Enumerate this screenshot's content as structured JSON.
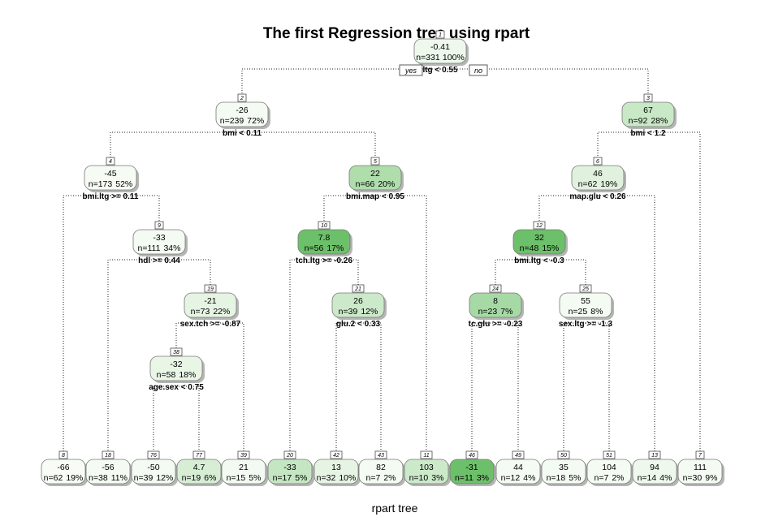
{
  "title": "The first Regression tree using rpart",
  "subtitle": "rpart tree",
  "branch_labels": {
    "yes": "yes",
    "no": "no"
  },
  "colors": {
    "lightest": "#f7fcf5",
    "darkest": "#66bd63"
  },
  "nodes": [
    {
      "id": "1",
      "value": "-0.41",
      "n": "n=331",
      "pct": "100%",
      "split": "ltg < 0.55",
      "fill": 0.06
    },
    {
      "id": "2",
      "value": "-26",
      "n": "n=239",
      "pct": "72%",
      "split": "bmi < 0.11",
      "fill": 0.02
    },
    {
      "id": "3",
      "value": "67",
      "n": "n=92",
      "pct": "28%",
      "split": "bmi < 1.2",
      "fill": 0.32
    },
    {
      "id": "4",
      "value": "-45",
      "n": "n=173",
      "pct": "52%",
      "split": "bmi.ltg >= 0.11",
      "fill": 0.01
    },
    {
      "id": "5",
      "value": "22",
      "n": "n=66",
      "pct": "20%",
      "split": "bmi.map < 0.95",
      "fill": 0.5
    },
    {
      "id": "6",
      "value": "46",
      "n": "n=62",
      "pct": "19%",
      "split": "map.glu < 0.26",
      "fill": 0.16
    },
    {
      "id": "9",
      "value": "-33",
      "n": "n=111",
      "pct": "34%",
      "split": "hdl >= 0.44",
      "fill": 0.02
    },
    {
      "id": "10",
      "value": "7.8",
      "n": "n=56",
      "pct": "17%",
      "split": "tch.ltg >= -0.26",
      "fill": 0.95
    },
    {
      "id": "12",
      "value": "32",
      "n": "n=48",
      "pct": "15%",
      "split": "bmi.ltg < -0.3",
      "fill": 0.95
    },
    {
      "id": "19",
      "value": "-21",
      "n": "n=73",
      "pct": "22%",
      "split": "sex.tch >= -0.87",
      "fill": 0.12
    },
    {
      "id": "21",
      "value": "26",
      "n": "n=39",
      "pct": "12%",
      "split": "glu.2 < 0.33",
      "fill": 0.3
    },
    {
      "id": "24",
      "value": "8",
      "n": "n=23",
      "pct": "7%",
      "split": "tc.glu >= -0.23",
      "fill": 0.55
    },
    {
      "id": "25",
      "value": "55",
      "n": "n=25",
      "pct": "8%",
      "split": "sex.ltg >= -1.3",
      "fill": 0.02
    },
    {
      "id": "38",
      "value": "-32",
      "n": "n=58",
      "pct": "18%",
      "split": "age.sex < 0.75",
      "fill": 0.1
    },
    {
      "id": "8",
      "value": "-66",
      "n": "n=62",
      "pct": "19%",
      "split": "",
      "fill": 0.0
    },
    {
      "id": "18",
      "value": "-56",
      "n": "n=38",
      "pct": "11%",
      "split": "",
      "fill": 0.02
    },
    {
      "id": "76",
      "value": "-50",
      "n": "n=39",
      "pct": "12%",
      "split": "",
      "fill": 0.02
    },
    {
      "id": "77",
      "value": "4.7",
      "n": "n=19",
      "pct": "6%",
      "split": "",
      "fill": 0.22
    },
    {
      "id": "39",
      "value": "21",
      "n": "n=15",
      "pct": "5%",
      "split": "",
      "fill": 0.03
    },
    {
      "id": "20",
      "value": "-33",
      "n": "n=17",
      "pct": "5%",
      "split": "",
      "fill": 0.35
    },
    {
      "id": "42",
      "value": "13",
      "n": "n=32",
      "pct": "10%",
      "split": "",
      "fill": 0.12
    },
    {
      "id": "43",
      "value": "82",
      "n": "n=7",
      "pct": "2%",
      "split": "",
      "fill": 0.02
    },
    {
      "id": "11",
      "value": "103",
      "n": "n=10",
      "pct": "3%",
      "split": "",
      "fill": 0.3
    },
    {
      "id": "46",
      "value": "-31",
      "n": "n=11",
      "pct": "3%",
      "split": "",
      "fill": 0.95
    },
    {
      "id": "49",
      "value": "44",
      "n": "n=12",
      "pct": "4%",
      "split": "",
      "fill": 0.02
    },
    {
      "id": "50",
      "value": "35",
      "n": "n=18",
      "pct": "5%",
      "split": "",
      "fill": 0.02
    },
    {
      "id": "51",
      "value": "104",
      "n": "n=7",
      "pct": "2%",
      "split": "",
      "fill": 0.02
    },
    {
      "id": "13",
      "value": "94",
      "n": "n=14",
      "pct": "4%",
      "split": "",
      "fill": 0.06
    },
    {
      "id": "7",
      "value": "111",
      "n": "n=30",
      "pct": "9%",
      "split": "",
      "fill": 0.02
    }
  ],
  "edges": [
    [
      "1",
      "2"
    ],
    [
      "1",
      "3"
    ],
    [
      "2",
      "4"
    ],
    [
      "2",
      "5"
    ],
    [
      "3",
      "6"
    ],
    [
      "3",
      "7"
    ],
    [
      "4",
      "8"
    ],
    [
      "4",
      "9"
    ],
    [
      "5",
      "10"
    ],
    [
      "5",
      "11"
    ],
    [
      "6",
      "12"
    ],
    [
      "6",
      "13"
    ],
    [
      "9",
      "18"
    ],
    [
      "9",
      "19"
    ],
    [
      "10",
      "20"
    ],
    [
      "10",
      "21"
    ],
    [
      "12",
      "24"
    ],
    [
      "12",
      "25"
    ],
    [
      "19",
      "38"
    ],
    [
      "19",
      "39"
    ],
    [
      "21",
      "42"
    ],
    [
      "21",
      "43"
    ],
    [
      "24",
      "46"
    ],
    [
      "24",
      "49"
    ],
    [
      "25",
      "50"
    ],
    [
      "25",
      "51"
    ],
    [
      "38",
      "76"
    ],
    [
      "38",
      "77"
    ]
  ]
}
